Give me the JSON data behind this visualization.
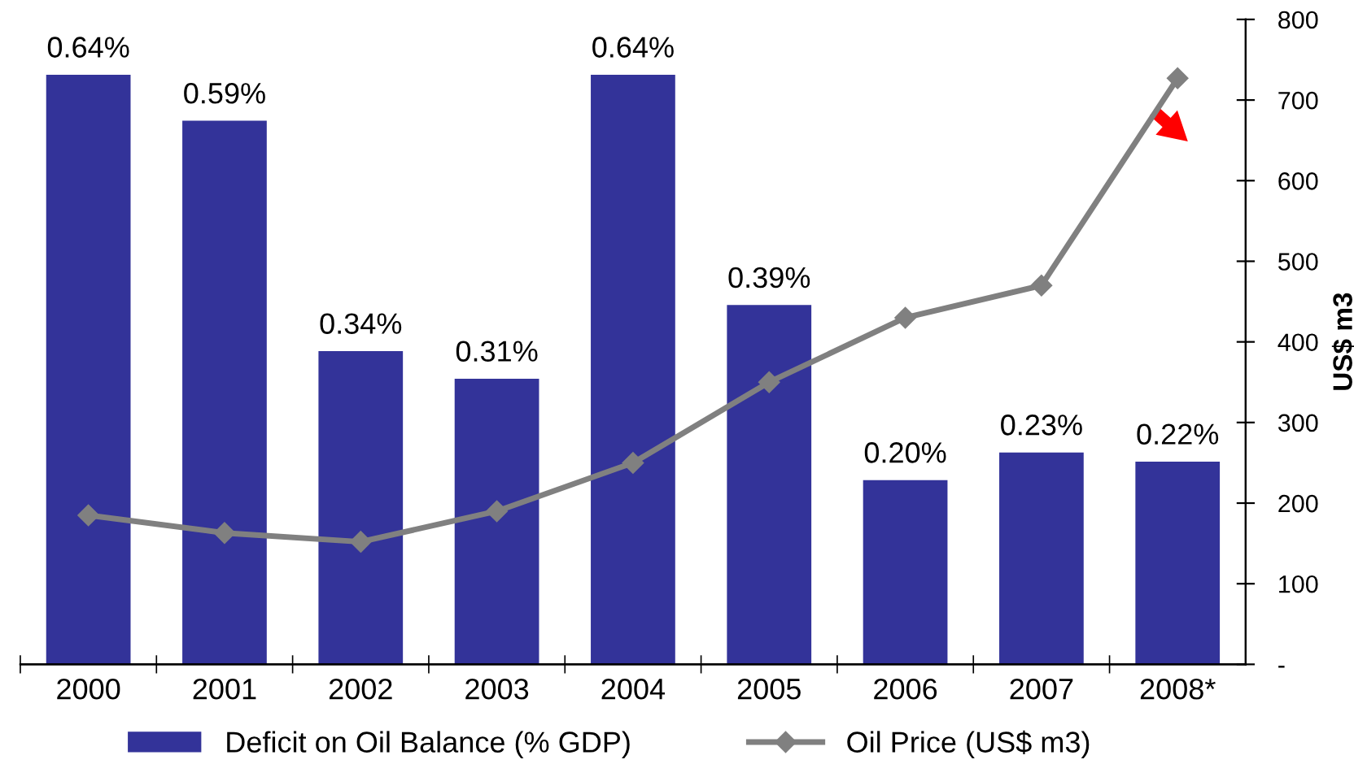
{
  "chart_data": {
    "type": "bar",
    "categories": [
      "2000",
      "2001",
      "2002",
      "2003",
      "2004",
      "2005",
      "2006",
      "2007",
      "2008*"
    ],
    "series": [
      {
        "name": "Deficit on Oil Balance (% GDP)",
        "color": "#333399",
        "values": [
          0.64,
          0.59,
          0.34,
          0.31,
          0.64,
          0.39,
          0.2,
          0.23,
          0.22
        ],
        "value_labels": [
          "0.64%",
          "0.59%",
          "0.34%",
          "0.31%",
          "0.64%",
          "0.39%",
          "0.20%",
          "0.23%",
          "0.22%"
        ]
      },
      {
        "name": "Oil Price (US$ m3)",
        "type": "line",
        "axis": "y2",
        "color": "#808080",
        "marker": "diamond",
        "values": [
          185,
          163,
          152,
          190,
          250,
          350,
          430,
          470,
          727
        ]
      }
    ],
    "ylim": [
      0,
      0.7
    ],
    "y2lim": [
      0,
      800
    ],
    "y2ticks": [
      {
        "value": 0,
        "label": "-"
      },
      100,
      200,
      300,
      400,
      500,
      600,
      700,
      800
    ],
    "y2label": "US$ m3",
    "legend": "bottom",
    "grid": false
  }
}
